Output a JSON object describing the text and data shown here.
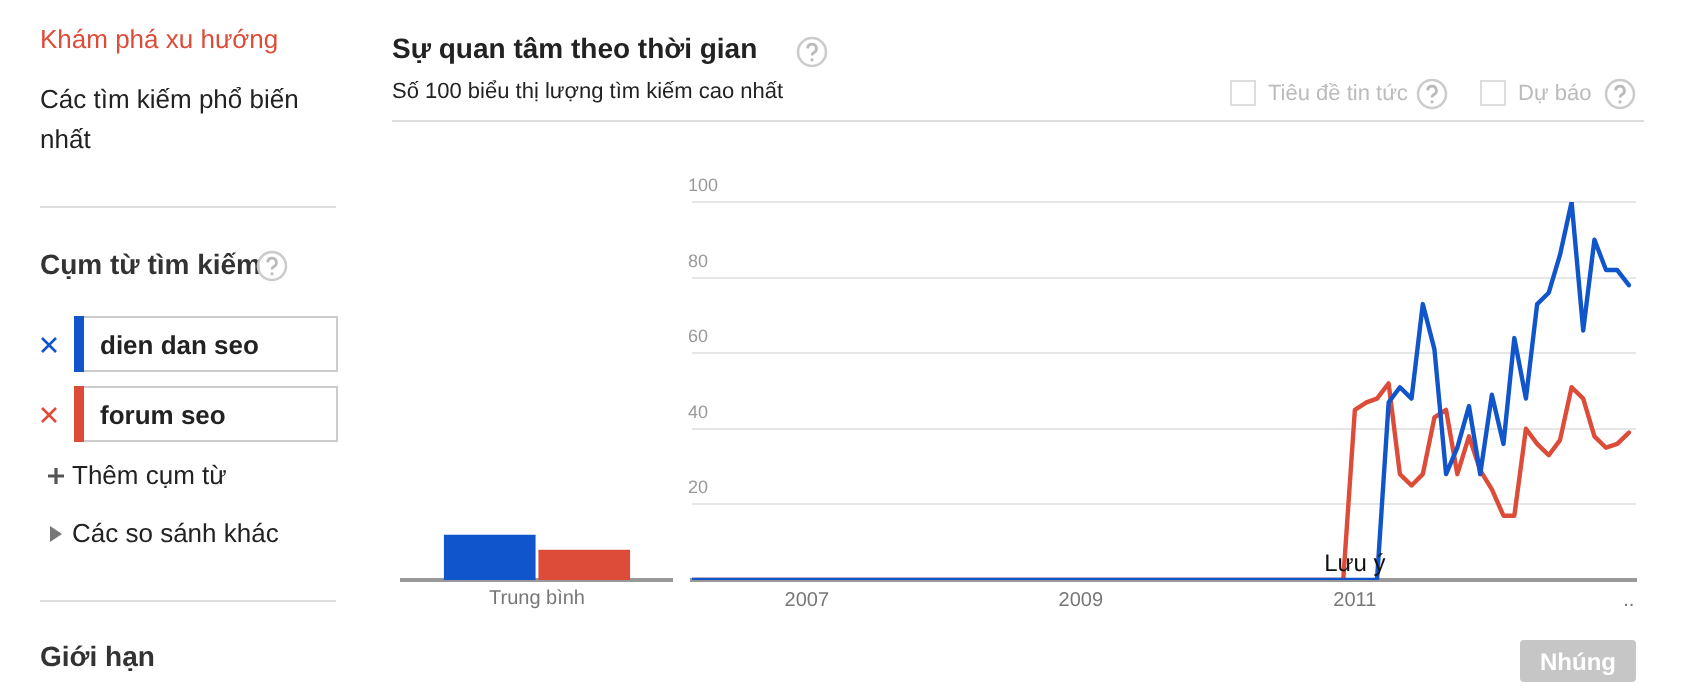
{
  "chart_data": [
    {
      "type": "other",
      "annotations": [
        "Khám phá xu hướng",
        "Các tìm kiếm phổ biến nhất",
        "Cụm từ tìm kiếm",
        "Thêm cụm từ",
        "Các so sánh khác",
        "Giới hạn"
      ]
    },
    {
      "type": "bar",
      "categories": [
        "Trung bình"
      ],
      "series": [
        {
          "color": "#1155cc",
          "values": [
            12
          ]
        },
        {
          "color": "#dd4b39",
          "values": [
            8
          ]
        }
      ],
      "ylim": [
        0,
        100
      ],
      "tick_labels": "x",
      "grid": false,
      "title": "Sự quan tâm theo thời gian"
    },
    {
      "type": "line",
      "subtitle": "Số 100 biểu thị lượng tìm kiếm cao nhất",
      "series": [
        {
          "name": "dien dan seo",
          "color": "#1155cc",
          "x": [
            "2006-03",
            "2011-03",
            "2011-04",
            "2011-05",
            "2011-06",
            "2011-07",
            "2011-08",
            "2011-09",
            "2011-10",
            "2011-11",
            "2011-12",
            "2012-01",
            "2012-02",
            "2012-03",
            "2012-04",
            "2012-05",
            "2012-06",
            "2012-07",
            "2012-08",
            "2012-09",
            "2012-10",
            "2012-11",
            "2012-12",
            "2013-01"
          ],
          "values": [
            0,
            0,
            47,
            51,
            48,
            73,
            61,
            28,
            35,
            46,
            28,
            49,
            36,
            64,
            48,
            73,
            76,
            86,
            100,
            66,
            90,
            82,
            82,
            78
          ]
        },
        {
          "name": "forum seo",
          "color": "#dd4b39",
          "x": [
            "2006-03",
            "2010-12",
            "2011-01",
            "2011-02",
            "2011-03",
            "2011-04",
            "2011-05",
            "2011-06",
            "2011-07",
            "2011-08",
            "2011-09",
            "2011-10",
            "2011-11",
            "2011-12",
            "2012-01",
            "2012-02",
            "2012-03",
            "2012-04",
            "2012-05",
            "2012-06",
            "2012-07",
            "2012-08",
            "2012-09",
            "2012-10",
            "2012-11",
            "2012-12",
            "2013-01"
          ],
          "values": [
            0,
            0,
            45,
            47,
            48,
            52,
            28,
            25,
            28,
            43,
            45,
            28,
            38,
            29,
            24,
            17,
            17,
            40,
            36,
            33,
            37,
            51,
            48,
            38,
            35,
            36,
            39
          ]
        }
      ],
      "xlim": [
        "2006-03",
        "2013-01-20"
      ],
      "xticks": [
        "2007",
        "2009",
        "2011",
        {
          "value": "2013",
          "label": ".."
        }
      ],
      "ylim": [
        0,
        100
      ],
      "yticks": [
        20,
        40,
        60,
        80,
        100
      ],
      "grid": "y",
      "legend": "left",
      "marker": "none",
      "annotations": [
        {
          "text": "Lưu ý",
          "x": "2011-01",
          "y": 0
        },
        "Tiêu đề tin tức",
        "Dự báo",
        "Nhúng"
      ]
    }
  ]
}
